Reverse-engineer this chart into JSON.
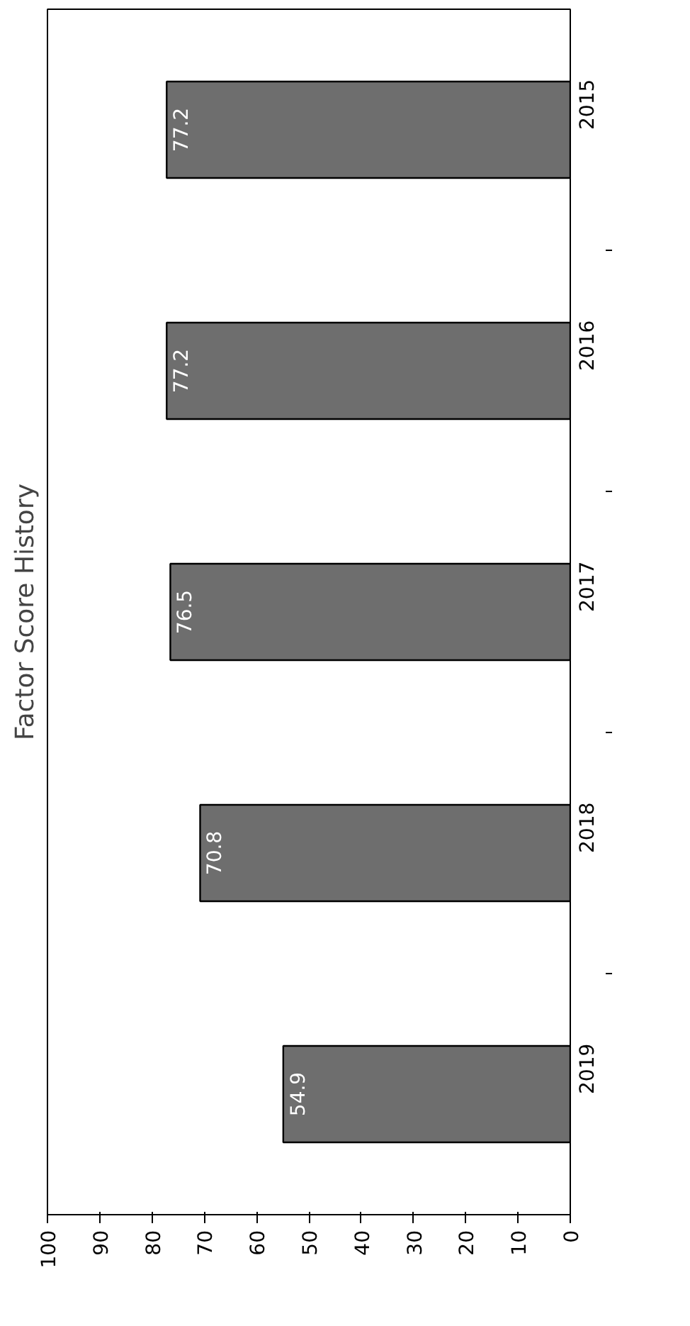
{
  "chart_data": {
    "type": "bar",
    "orientation": "horizontal",
    "title": "Factor Score History",
    "categories": [
      "2015",
      "2016",
      "2017",
      "2018",
      "2019"
    ],
    "values": [
      77.2,
      77.2,
      76.5,
      70.8,
      54.9
    ],
    "color": "#6e6e6e",
    "xlim": [
      100,
      0
    ],
    "xticks": [
      0,
      10,
      20,
      30,
      40,
      50,
      60,
      70,
      80,
      90,
      100
    ],
    "data_labels": true,
    "grid": false
  }
}
